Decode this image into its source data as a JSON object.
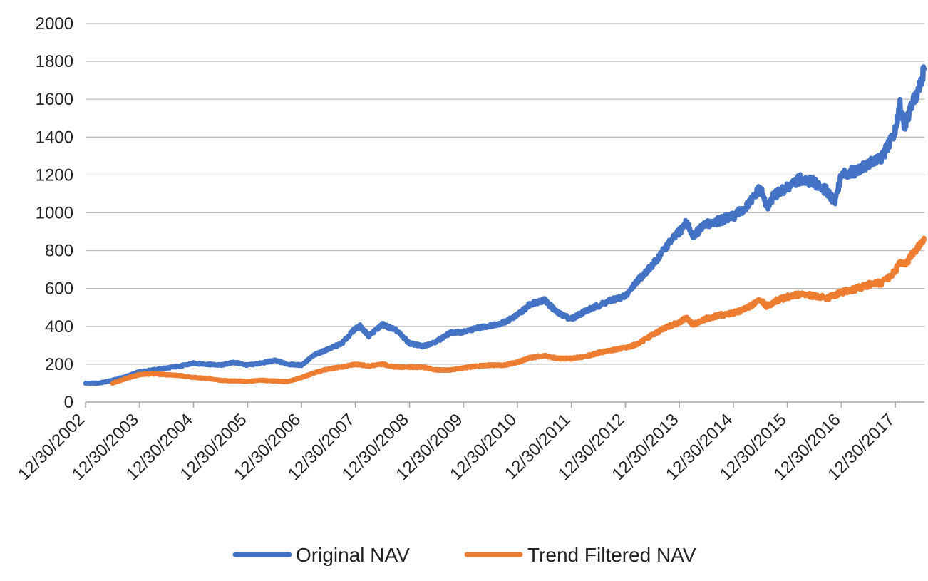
{
  "chart_data": {
    "type": "line",
    "title": "",
    "xlabel": "",
    "ylabel": "",
    "ylim": [
      0,
      2000
    ],
    "yticks": [
      0,
      200,
      400,
      600,
      800,
      1000,
      1200,
      1400,
      1600,
      1800,
      2000
    ],
    "xlim": [
      "2002-12-30",
      "2018-07-15"
    ],
    "xtick_labels": [
      "12/30/2002",
      "12/30/2003",
      "12/30/2004",
      "12/30/2005",
      "12/30/2006",
      "12/30/2007",
      "12/30/2008",
      "12/30/2009",
      "12/30/2010",
      "12/30/2011",
      "12/30/2012",
      "12/30/2013",
      "12/30/2014",
      "12/30/2015",
      "12/30/2016",
      "12/30/2017"
    ],
    "grid": "horizontal",
    "legend_position": "bottom",
    "series": [
      {
        "name": "Original NAV",
        "color": "#4472C4",
        "points": [
          [
            "2002-12-30",
            100
          ],
          [
            "2003-03-30",
            100
          ],
          [
            "2003-06-30",
            115
          ],
          [
            "2003-09-30",
            135
          ],
          [
            "2003-12-30",
            160
          ],
          [
            "2004-03-30",
            170
          ],
          [
            "2004-06-30",
            180
          ],
          [
            "2004-09-30",
            190
          ],
          [
            "2004-12-30",
            205
          ],
          [
            "2005-03-30",
            200
          ],
          [
            "2005-06-30",
            195
          ],
          [
            "2005-09-30",
            210
          ],
          [
            "2005-12-30",
            195
          ],
          [
            "2006-03-30",
            205
          ],
          [
            "2006-06-30",
            220
          ],
          [
            "2006-09-30",
            200
          ],
          [
            "2006-12-30",
            195
          ],
          [
            "2007-03-30",
            250
          ],
          [
            "2007-06-30",
            280
          ],
          [
            "2007-09-30",
            310
          ],
          [
            "2007-12-30",
            390
          ],
          [
            "2008-01-30",
            400
          ],
          [
            "2008-03-30",
            350
          ],
          [
            "2008-06-30",
            410
          ],
          [
            "2008-09-30",
            380
          ],
          [
            "2008-12-30",
            310
          ],
          [
            "2009-03-30",
            295
          ],
          [
            "2009-06-30",
            320
          ],
          [
            "2009-09-30",
            365
          ],
          [
            "2009-12-30",
            370
          ],
          [
            "2010-03-30",
            390
          ],
          [
            "2010-06-30",
            405
          ],
          [
            "2010-09-30",
            420
          ],
          [
            "2010-12-30",
            460
          ],
          [
            "2011-03-30",
            520
          ],
          [
            "2011-06-30",
            540
          ],
          [
            "2011-09-30",
            470
          ],
          [
            "2011-12-30",
            440
          ],
          [
            "2012-03-30",
            480
          ],
          [
            "2012-06-30",
            510
          ],
          [
            "2012-09-30",
            540
          ],
          [
            "2012-12-30",
            560
          ],
          [
            "2013-03-30",
            650
          ],
          [
            "2013-06-30",
            720
          ],
          [
            "2013-09-30",
            820
          ],
          [
            "2013-12-30",
            900
          ],
          [
            "2014-02-15",
            950
          ],
          [
            "2014-03-30",
            880
          ],
          [
            "2014-06-30",
            940
          ],
          [
            "2014-09-30",
            960
          ],
          [
            "2014-12-30",
            980
          ],
          [
            "2015-03-30",
            1030
          ],
          [
            "2015-06-30",
            1130
          ],
          [
            "2015-08-15",
            1030
          ],
          [
            "2015-09-30",
            1090
          ],
          [
            "2015-12-30",
            1130
          ],
          [
            "2016-03-30",
            1180
          ],
          [
            "2016-06-30",
            1160
          ],
          [
            "2016-09-30",
            1110
          ],
          [
            "2016-11-15",
            1060
          ],
          [
            "2016-12-30",
            1200
          ],
          [
            "2017-03-30",
            1220
          ],
          [
            "2017-06-30",
            1260
          ],
          [
            "2017-09-30",
            1290
          ],
          [
            "2017-12-30",
            1430
          ],
          [
            "2018-02-01",
            1580
          ],
          [
            "2018-03-01",
            1450
          ],
          [
            "2018-04-15",
            1560
          ],
          [
            "2018-06-01",
            1650
          ],
          [
            "2018-07-15",
            1760
          ]
        ]
      },
      {
        "name": "Trend Filtered NAV",
        "color": "#ED7D31",
        "points": [
          [
            "2003-06-30",
            100
          ],
          [
            "2003-09-30",
            125
          ],
          [
            "2003-12-30",
            145
          ],
          [
            "2004-03-30",
            150
          ],
          [
            "2004-06-30",
            145
          ],
          [
            "2004-09-30",
            140
          ],
          [
            "2004-12-30",
            130
          ],
          [
            "2005-03-30",
            125
          ],
          [
            "2005-06-30",
            115
          ],
          [
            "2005-09-30",
            112
          ],
          [
            "2005-12-30",
            110
          ],
          [
            "2006-03-30",
            115
          ],
          [
            "2006-06-30",
            112
          ],
          [
            "2006-09-30",
            108
          ],
          [
            "2006-12-30",
            130
          ],
          [
            "2007-03-30",
            155
          ],
          [
            "2007-06-30",
            175
          ],
          [
            "2007-09-30",
            185
          ],
          [
            "2007-12-30",
            200
          ],
          [
            "2008-03-30",
            190
          ],
          [
            "2008-06-30",
            200
          ],
          [
            "2008-09-30",
            185
          ],
          [
            "2008-12-30",
            185
          ],
          [
            "2009-03-30",
            185
          ],
          [
            "2009-06-30",
            170
          ],
          [
            "2009-09-30",
            170
          ],
          [
            "2009-12-30",
            180
          ],
          [
            "2010-03-30",
            190
          ],
          [
            "2010-06-30",
            195
          ],
          [
            "2010-09-30",
            195
          ],
          [
            "2010-12-30",
            210
          ],
          [
            "2011-03-30",
            235
          ],
          [
            "2011-06-30",
            245
          ],
          [
            "2011-09-30",
            230
          ],
          [
            "2011-12-30",
            230
          ],
          [
            "2012-03-30",
            240
          ],
          [
            "2012-06-30",
            260
          ],
          [
            "2012-09-30",
            275
          ],
          [
            "2012-12-30",
            285
          ],
          [
            "2013-03-30",
            310
          ],
          [
            "2013-06-30",
            355
          ],
          [
            "2013-09-30",
            395
          ],
          [
            "2013-12-30",
            420
          ],
          [
            "2014-02-15",
            445
          ],
          [
            "2014-03-30",
            410
          ],
          [
            "2014-06-30",
            440
          ],
          [
            "2014-09-30",
            460
          ],
          [
            "2014-12-30",
            470
          ],
          [
            "2015-03-30",
            495
          ],
          [
            "2015-06-30",
            540
          ],
          [
            "2015-08-15",
            505
          ],
          [
            "2015-09-30",
            530
          ],
          [
            "2015-12-30",
            555
          ],
          [
            "2016-03-30",
            570
          ],
          [
            "2016-06-30",
            560
          ],
          [
            "2016-09-30",
            550
          ],
          [
            "2016-12-30",
            580
          ],
          [
            "2017-03-30",
            595
          ],
          [
            "2017-06-30",
            620
          ],
          [
            "2017-09-30",
            630
          ],
          [
            "2017-12-30",
            690
          ],
          [
            "2018-02-01",
            750
          ],
          [
            "2018-03-01",
            720
          ],
          [
            "2018-04-15",
            770
          ],
          [
            "2018-06-01",
            820
          ],
          [
            "2018-07-15",
            860
          ]
        ]
      }
    ]
  }
}
